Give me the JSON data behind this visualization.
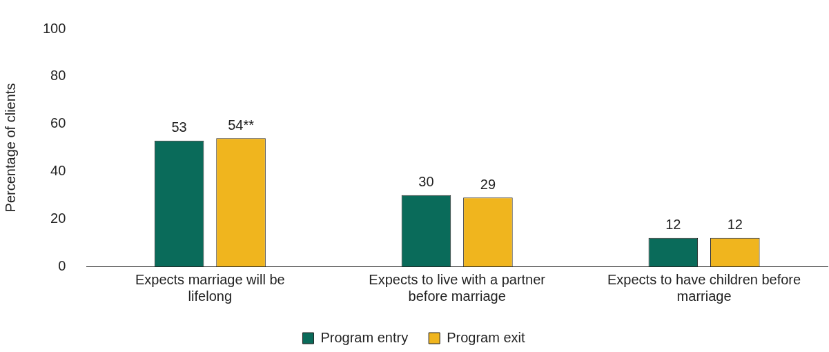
{
  "chart_data": {
    "type": "bar",
    "ylabel": "Percentage of clients",
    "categories": [
      "Expects marriage will be lifelong",
      "Expects to live with a partner before marriage",
      "Expects to have children before marriage"
    ],
    "series": [
      {
        "name": "Program entry",
        "color": "#0a6b5a",
        "values": [
          53,
          30,
          12
        ],
        "value_labels": [
          "53",
          "30",
          "12"
        ]
      },
      {
        "name": "Program exit",
        "color": "#f0b51e",
        "values": [
          54,
          29,
          12
        ],
        "value_labels": [
          "54**",
          "29",
          "12"
        ]
      }
    ],
    "ylim": [
      0,
      100
    ],
    "yticks": [
      0,
      20,
      40,
      60,
      80,
      100
    ],
    "grid": false,
    "legend": "bottom"
  }
}
